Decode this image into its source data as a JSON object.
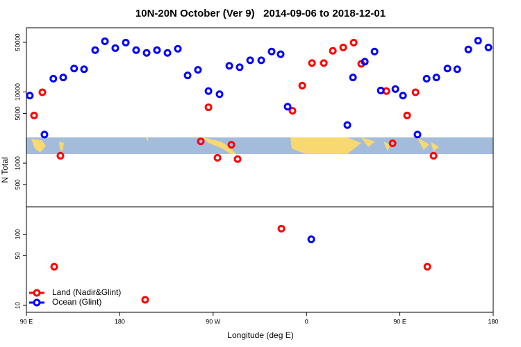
{
  "chart_data": {
    "type": "scatter",
    "title": "10N-20N October (Ver 9)   2014-09-06 to 2018-12-01",
    "xlabel": "Longitude (deg E)",
    "ylabel": "N Total",
    "xlim": [
      90,
      540
    ],
    "xticks": [
      {
        "value": 90,
        "label": "90 E"
      },
      180,
      {
        "value": 270,
        "label": "90 W"
      },
      {
        "value": 360,
        "label": "0"
      },
      {
        "value": 450,
        "label": "90 E"
      },
      {
        "value": 540,
        "label": "180"
      }
    ],
    "ylim": [
      8,
      80000
    ],
    "log_y": true,
    "yticks": [
      10,
      50,
      100,
      500,
      1000,
      5000,
      10000,
      50000
    ],
    "legend": "bottom-left",
    "series": [
      {
        "name": "Land (Nadir&Glint)",
        "color": "#ff0000",
        "x": [
          97.4,
          105.4,
          122.8,
          116.8,
          204.5,
          258.1,
          265.5,
          274.2,
          287.6,
          293.6,
          335.8,
          346.5,
          355.9,
          365.3,
          376.7,
          385.4,
          395.4,
          405.5,
          412.8,
          437,
          443,
          457,
          465.1,
          476.5,
          482.5
        ],
        "values": [
          4680,
          9900,
          1270,
          35,
          12,
          2020,
          6100,
          1190,
          1810,
          1140,
          120,
          5450,
          12300,
          25500,
          25500,
          37900,
          42300,
          49500,
          24900,
          10300,
          1900,
          4680,
          9900,
          35,
          1270
        ]
      },
      {
        "name": "Ocean (Glint)",
        "color": "#0000ff",
        "x": [
          93.3,
          107.4,
          116,
          125.5,
          136,
          145.6,
          156.3,
          165.7,
          175.7,
          185.8,
          195.8,
          205.9,
          215.9,
          226,
          236,
          245.4,
          255.4,
          265.5,
          276.2,
          285.6,
          295.6,
          305.7,
          316.4,
          326.4,
          335.1,
          341.8,
          364.6,
          399.4,
          404.8,
          416.2,
          425.6,
          431.6,
          445.7,
          453,
          467,
          475.8,
          485.2,
          495.9,
          505.3,
          516,
          525.4,
          535.4
        ],
        "values": [
          8900,
          2520,
          15400,
          16000,
          21400,
          20900,
          38800,
          51600,
          41400,
          49500,
          38800,
          35400,
          38800,
          35400,
          40500,
          17100,
          20500,
          10300,
          9300,
          23300,
          22300,
          27900,
          27900,
          37100,
          34000,
          6220,
          85,
          3430,
          16000,
          26700,
          37100,
          10500,
          11000,
          8900,
          2520,
          15400,
          16000,
          21400,
          20900,
          39700,
          52700,
          42300
        ]
      }
    ]
  }
}
